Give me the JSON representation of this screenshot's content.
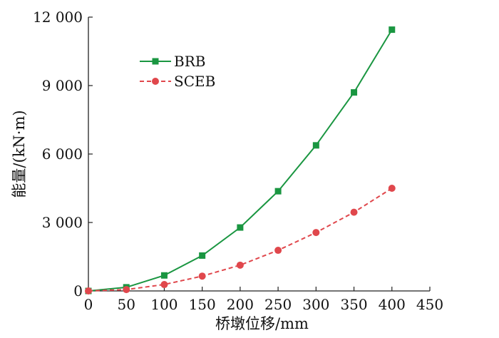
{
  "chart_data": {
    "type": "line",
    "xlabel": "桥墩位移/mm",
    "ylabel": "能量/(kN·m)",
    "x": [
      0,
      50,
      100,
      150,
      200,
      250,
      300,
      350,
      400
    ],
    "xlim": [
      0,
      450
    ],
    "ylim": [
      0,
      12000
    ],
    "x_ticks": [
      "0",
      "50",
      "100",
      "150",
      "200",
      "250",
      "300",
      "350",
      "400",
      "450"
    ],
    "y_ticks": [
      "0",
      "3 000",
      "6 000",
      "9 000",
      "12 000"
    ],
    "grid": false,
    "legend_position": "top-left",
    "series": [
      {
        "name": "BRB",
        "color": "#1a9641",
        "line_style": "solid",
        "marker": "square",
        "values": [
          0,
          160,
          680,
          1550,
          2780,
          4370,
          6380,
          8700,
          11450
        ]
      },
      {
        "name": "SCEB",
        "color": "#e0474c",
        "line_style": "dashed",
        "marker": "circle",
        "values": [
          0,
          60,
          280,
          650,
          1130,
          1780,
          2560,
          3450,
          4500
        ]
      }
    ]
  }
}
